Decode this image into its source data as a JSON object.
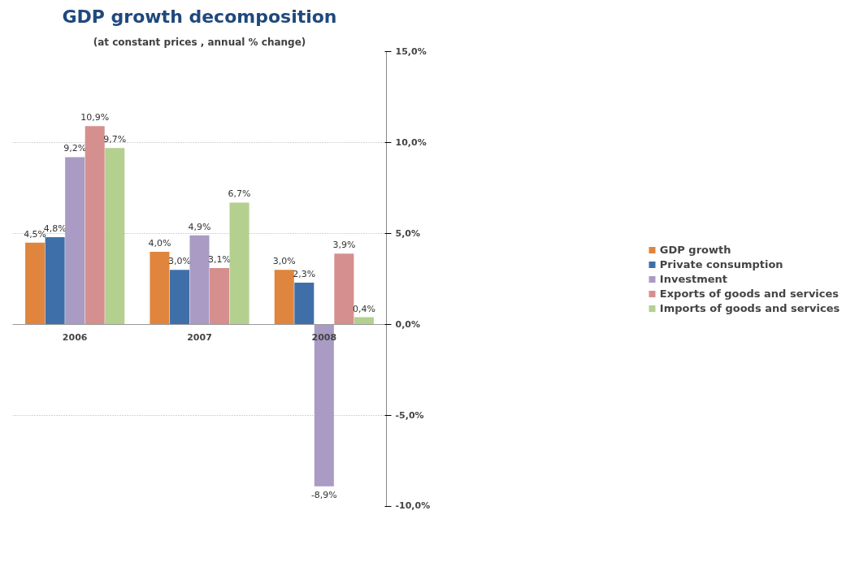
{
  "chart_data": {
    "type": "bar",
    "title": "GDP growth decomposition",
    "subtitle": "(at constant prices , annual % change)",
    "categories": [
      "2006",
      "2007",
      "2008"
    ],
    "series": [
      {
        "name": "GDP growth",
        "color": "#e0853d",
        "values": [
          4.5,
          4.0,
          3.0
        ],
        "value_labels": [
          "4,5%",
          "4,0%",
          "3,0%"
        ]
      },
      {
        "name": "Private consumption",
        "color": "#3f6fa8",
        "values": [
          4.8,
          3.0,
          2.3
        ],
        "value_labels": [
          "4,8%",
          "3,0%",
          "2,3%"
        ]
      },
      {
        "name": "Investment",
        "color": "#a99bc4",
        "values": [
          9.2,
          4.9,
          -8.9
        ],
        "value_labels": [
          "9,2%",
          "4,9%",
          "-8,9%"
        ]
      },
      {
        "name": "Exports of goods and services",
        "color": "#d68f8f",
        "values": [
          10.9,
          3.1,
          3.9
        ],
        "value_labels": [
          "10,9%",
          "3,1%",
          "3,9%"
        ]
      },
      {
        "name": "Imports of goods and services",
        "color": "#b3d08e",
        "values": [
          9.7,
          6.7,
          0.4
        ],
        "value_labels": [
          "9,7%",
          "6,7%",
          "0,4%"
        ]
      }
    ],
    "ylim": [
      -10,
      15
    ],
    "yticks": [
      {
        "value": -10,
        "label": "-10,0%"
      },
      {
        "value": -5,
        "label": "-5,0%"
      },
      {
        "value": 0,
        "label": "0,0%"
      },
      {
        "value": 5,
        "label": "5,0%"
      },
      {
        "value": 10,
        "label": "10,0%"
      },
      {
        "value": 15,
        "label": "15,0%"
      }
    ],
    "grid": "y",
    "legend": "right"
  }
}
